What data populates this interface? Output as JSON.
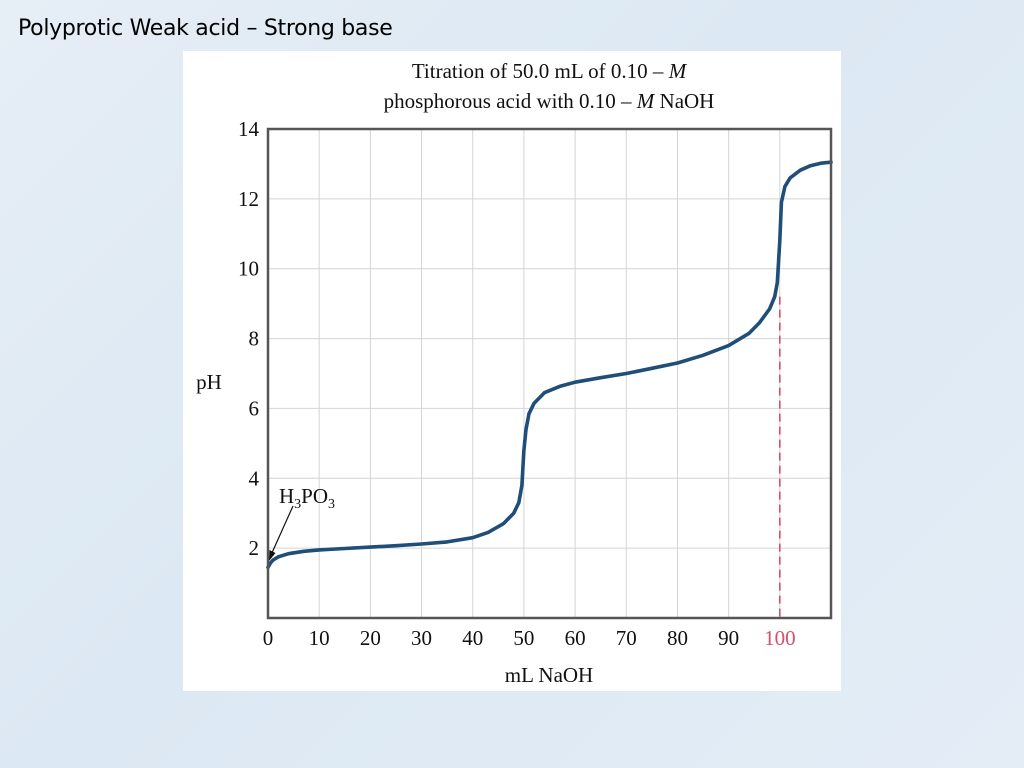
{
  "slide": {
    "title": "Polyprotic Weak acid – Strong base"
  },
  "colors": {
    "curve": "#1f4e79",
    "grid": "#d4d4d4",
    "frame": "#555555",
    "equivalence": "#d6506a",
    "text": "#111111"
  },
  "chart_data": {
    "type": "line",
    "title_line1": "Titration of 50.0 mL of 0.10 – ",
    "title_line1_italic": "M",
    "title_line2a": "phosphorous acid with 0.10 – ",
    "title_line2_italic": "M",
    "title_line2b": " NaOH",
    "xlabel": "mL NaOH",
    "ylabel": "pH",
    "xlim": [
      0,
      110
    ],
    "ylim": [
      0,
      14
    ],
    "x_ticks": [
      "0",
      "10",
      "20",
      "30",
      "40",
      "50",
      "60",
      "70",
      "80",
      "90",
      "100"
    ],
    "y_ticks": [
      "2",
      "4",
      "6",
      "8",
      "10",
      "12",
      "14"
    ],
    "grid": true,
    "equivalence_volume": 100,
    "equivalence_label": "100",
    "annotation": {
      "base": "H",
      "sub1": "3",
      "mid": "PO",
      "sub2": "3"
    },
    "series": [
      {
        "x": [
          0,
          0.5,
          1,
          2,
          4,
          7,
          10,
          15,
          20,
          25,
          30,
          35,
          40,
          43,
          46,
          48,
          49,
          49.6,
          50,
          50.4,
          51,
          52,
          54,
          57,
          60,
          65,
          70,
          75,
          80,
          85,
          90,
          94,
          96,
          98,
          99,
          99.5,
          100,
          100.3,
          101,
          102,
          104,
          106,
          108,
          110
        ],
        "y": [
          1.45,
          1.58,
          1.66,
          1.75,
          1.84,
          1.91,
          1.95,
          1.99,
          2.03,
          2.07,
          2.12,
          2.18,
          2.3,
          2.45,
          2.7,
          3.0,
          3.3,
          3.8,
          4.8,
          5.4,
          5.85,
          6.15,
          6.45,
          6.63,
          6.75,
          6.88,
          7.0,
          7.15,
          7.3,
          7.52,
          7.8,
          8.15,
          8.45,
          8.85,
          9.2,
          9.6,
          10.8,
          11.9,
          12.35,
          12.6,
          12.82,
          12.95,
          13.02,
          13.05
        ]
      }
    ]
  }
}
